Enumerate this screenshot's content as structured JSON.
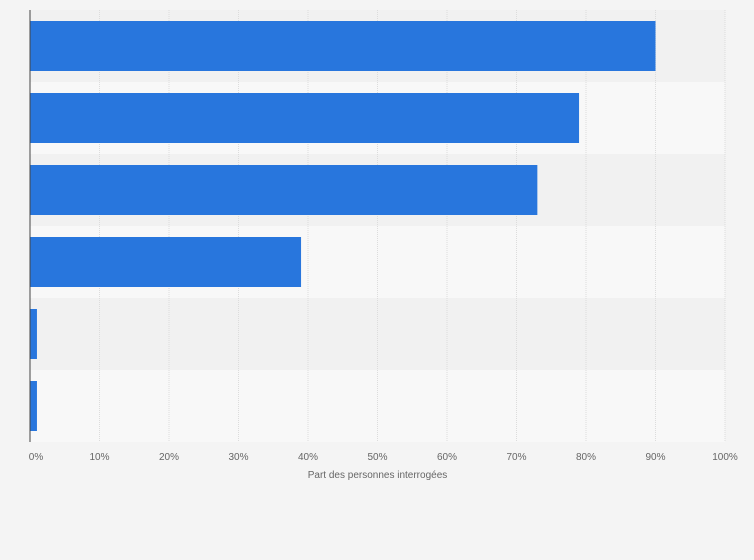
{
  "chart_data": {
    "type": "bar",
    "orientation": "horizontal",
    "categories": [
      "",
      "",
      "",
      "",
      "",
      ""
    ],
    "values": [
      90,
      79,
      73,
      39,
      1,
      1
    ],
    "xlabel": "Part des personnes interrogées",
    "ylabel": "",
    "xlim": [
      0,
      100
    ],
    "xticks": [
      "0%",
      "10%",
      "20%",
      "30%",
      "40%",
      "50%",
      "60%",
      "70%",
      "80%",
      "90%",
      "100%"
    ],
    "grid": true,
    "legend": "none",
    "colors": {
      "bar": "#2876dd",
      "band_dark": "#f1f1f1",
      "band_light": "#f8f8f8",
      "grid": "#dcdcdc",
      "axis": "#444444",
      "text": "#666666"
    }
  }
}
